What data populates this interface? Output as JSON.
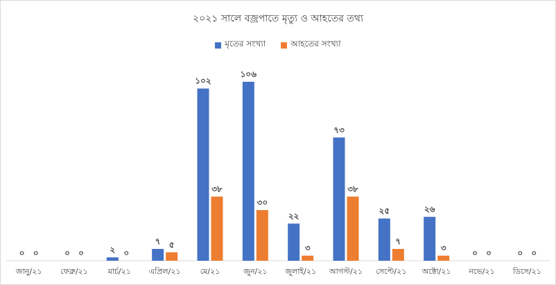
{
  "chart_data": {
    "type": "bar",
    "title": "২০২১ সালে বজ্রপাতে মৃত্যু ও আহতের তথ্য",
    "categories": [
      "জানু/২১",
      "ফেব্রু/২১",
      "মার্চ/২১",
      "এপ্রিল/২১",
      "মে/২১",
      "জুন/২১",
      "জুলাই/২১",
      "আগস্ট/২১",
      "সেপ্টে/২১",
      "অক্টো/২১",
      "নভে/২১",
      "ডিসে/২১"
    ],
    "series": [
      {
        "name": "মৃতের সংখ্যা",
        "color": "#4472C4",
        "values": [
          0,
          0,
          2,
          7,
          102,
          106,
          22,
          73,
          25,
          26,
          0,
          0
        ],
        "labels": [
          "০",
          "০",
          "২",
          "৭",
          "১০২",
          "১০৬",
          "২২",
          "৭৩",
          "২৫",
          "২৬",
          "০",
          "০"
        ]
      },
      {
        "name": "আহতের সংখ্যা",
        "color": "#ED7D31",
        "values": [
          0,
          0,
          0,
          5,
          38,
          30,
          3,
          38,
          7,
          3,
          0,
          0
        ],
        "labels": [
          "০",
          "০",
          "০",
          "৫",
          "৩৮",
          "৩০",
          "৩",
          "৩৮",
          "৭",
          "৩",
          "০",
          "০"
        ]
      }
    ],
    "ylim": [
      0,
      115
    ],
    "grid": false,
    "legend_position": "top-center",
    "xlabel": "",
    "ylabel": ""
  }
}
